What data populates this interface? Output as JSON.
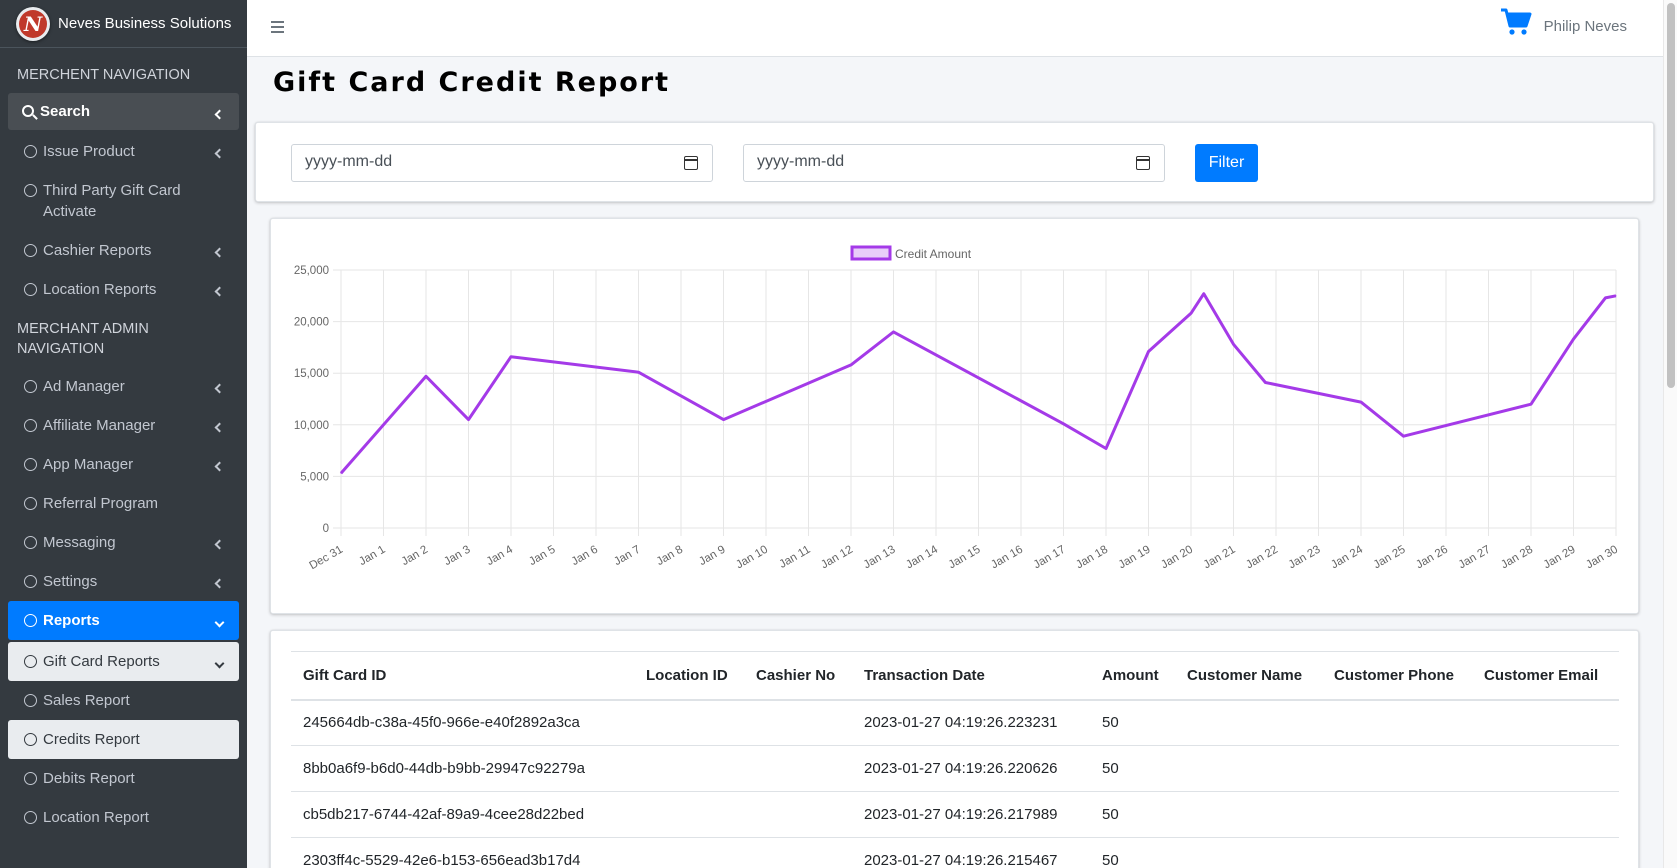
{
  "brand": {
    "name": "Neves Business Solutions",
    "logo_letter": "N"
  },
  "sidebar": {
    "merchant_header": "MERCHENT NAVIGATION",
    "search_label": "Search",
    "merchant_items": [
      {
        "label": "Issue Product"
      },
      {
        "label": "Third Party Gift Card Activate"
      },
      {
        "label": "Cashier Reports"
      },
      {
        "label": "Location Reports"
      }
    ],
    "admin_header": "MERCHANT ADMIN NAVIGATION",
    "admin_items": [
      {
        "label": "Ad Manager"
      },
      {
        "label": "Affiliate Manager"
      },
      {
        "label": "App Manager"
      },
      {
        "label": "Referral Program"
      },
      {
        "label": "Messaging"
      },
      {
        "label": "Settings"
      }
    ],
    "reports_label": "Reports",
    "gift_card_reports_label": "Gift Card Reports",
    "report_items": [
      {
        "label": "Sales Report"
      },
      {
        "label": "Credits Report"
      },
      {
        "label": "Debits Report"
      },
      {
        "label": "Location Report"
      }
    ]
  },
  "topbar": {
    "user_name": "Philip Neves"
  },
  "page": {
    "title": "Gift Card Credit Report"
  },
  "filter": {
    "start_placeholder": "yyyy-mm-dd",
    "end_placeholder": "yyyy-mm-dd",
    "button_label": "Filter"
  },
  "colors": {
    "accent": "#007bff",
    "line": "#a43ae8",
    "sidebar": "#343a40"
  },
  "chart_data": {
    "type": "line",
    "series": [
      {
        "name": "Credit Amount",
        "points": [
          [
            "Dec 31",
            5300
          ],
          [
            "Jan 2",
            14700
          ],
          [
            "Jan 3",
            10500
          ],
          [
            "Jan 4",
            16600
          ],
          [
            "Jan 7",
            15100
          ],
          [
            "Jan 9",
            10500
          ],
          [
            "Jan 12",
            15800
          ],
          [
            "Jan 13",
            19000
          ],
          [
            "Jan 17",
            10100
          ],
          [
            "Jan 18",
            7700
          ],
          [
            "Jan 19",
            17100
          ],
          [
            "Jan 20",
            20800
          ],
          [
            "Jan 20.3",
            22700
          ],
          [
            "Jan 21",
            17800
          ],
          [
            "Jan 21.75",
            14100
          ],
          [
            "Jan 24",
            12200
          ],
          [
            "Jan 25",
            8900
          ],
          [
            "Jan 28",
            12000
          ],
          [
            "Jan 29",
            18300
          ],
          [
            "Jan 29.75",
            22300
          ],
          [
            "Jan 30",
            22500
          ]
        ]
      }
    ],
    "categories": [
      "Dec 31",
      "Jan 1",
      "Jan 2",
      "Jan 3",
      "Jan 4",
      "Jan 5",
      "Jan 6",
      "Jan 7",
      "Jan 8",
      "Jan 9",
      "Jan 10",
      "Jan 11",
      "Jan 12",
      "Jan 13",
      "Jan 14",
      "Jan 15",
      "Jan 16",
      "Jan 17",
      "Jan 18",
      "Jan 19",
      "Jan 20",
      "Jan 21",
      "Jan 22",
      "Jan 23",
      "Jan 24",
      "Jan 25",
      "Jan 26",
      "Jan 27",
      "Jan 28",
      "Jan 29",
      "Jan 30"
    ],
    "y_ticks": [
      "0",
      "5,000",
      "10,000",
      "15,000",
      "20,000",
      "25,000"
    ],
    "ylim": [
      0,
      25000
    ],
    "grid": true,
    "legend": "top-center"
  },
  "table": {
    "headers": [
      "Gift Card ID",
      "Location ID",
      "Cashier No",
      "Transaction Date",
      "Amount",
      "Customer Name",
      "Customer Phone",
      "Customer Email"
    ],
    "rows": [
      [
        "245664db-c38a-45f0-966e-e40f2892a3ca",
        "",
        "",
        "2023-01-27 04:19:26.223231",
        "50",
        "",
        "",
        ""
      ],
      [
        "8bb0a6f9-b6d0-44db-b9bb-29947c92279a",
        "",
        "",
        "2023-01-27 04:19:26.220626",
        "50",
        "",
        "",
        ""
      ],
      [
        "cb5db217-6744-42af-89a9-4cee28d22bed",
        "",
        "",
        "2023-01-27 04:19:26.217989",
        "50",
        "",
        "",
        ""
      ],
      [
        "2303ff4c-5529-42e6-b153-656ead3b17d4",
        "",
        "",
        "2023-01-27 04:19:26.215467",
        "50",
        "",
        "",
        ""
      ]
    ]
  }
}
